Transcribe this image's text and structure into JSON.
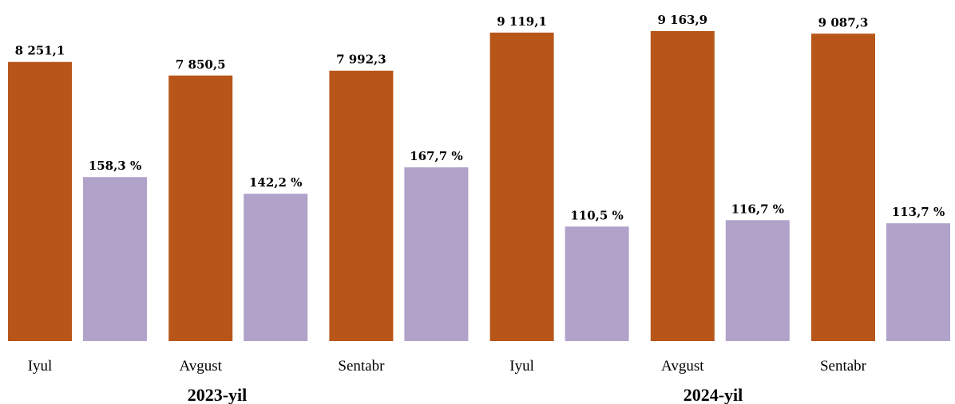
{
  "chart_data": {
    "type": "bar",
    "groups": [
      {
        "label": "2023-yil",
        "categories": [
          "Iyul",
          "Avgust",
          "Sentabr"
        ]
      },
      {
        "label": "2024-yil",
        "categories": [
          "Iyul",
          "Avgust",
          "Sentabr"
        ]
      }
    ],
    "categories": [
      "Iyul",
      "Avgust",
      "Sentabr",
      "Iyul",
      "Avgust",
      "Sentabr"
    ],
    "series": [
      {
        "color": "#B8561A",
        "values": [
          8251.1,
          7850.5,
          7992.3,
          9119.1,
          9163.9,
          9087.3
        ],
        "labels": [
          "8 251,1",
          "7 850,5",
          "7 992,3",
          "9 119,1",
          "9 163,9",
          "9 087,3"
        ]
      },
      {
        "color": "#B1A2C9",
        "values": [
          158.3,
          142.2,
          167.7,
          110.5,
          116.7,
          113.7
        ],
        "labels": [
          "158,3 %",
          "142,2 %",
          "167,7 %",
          "110,5 %",
          "116,7 %",
          "113,7 %"
        ]
      }
    ],
    "title": "",
    "xlabel": "",
    "ylabel": "",
    "legend": "none",
    "grid": false
  }
}
